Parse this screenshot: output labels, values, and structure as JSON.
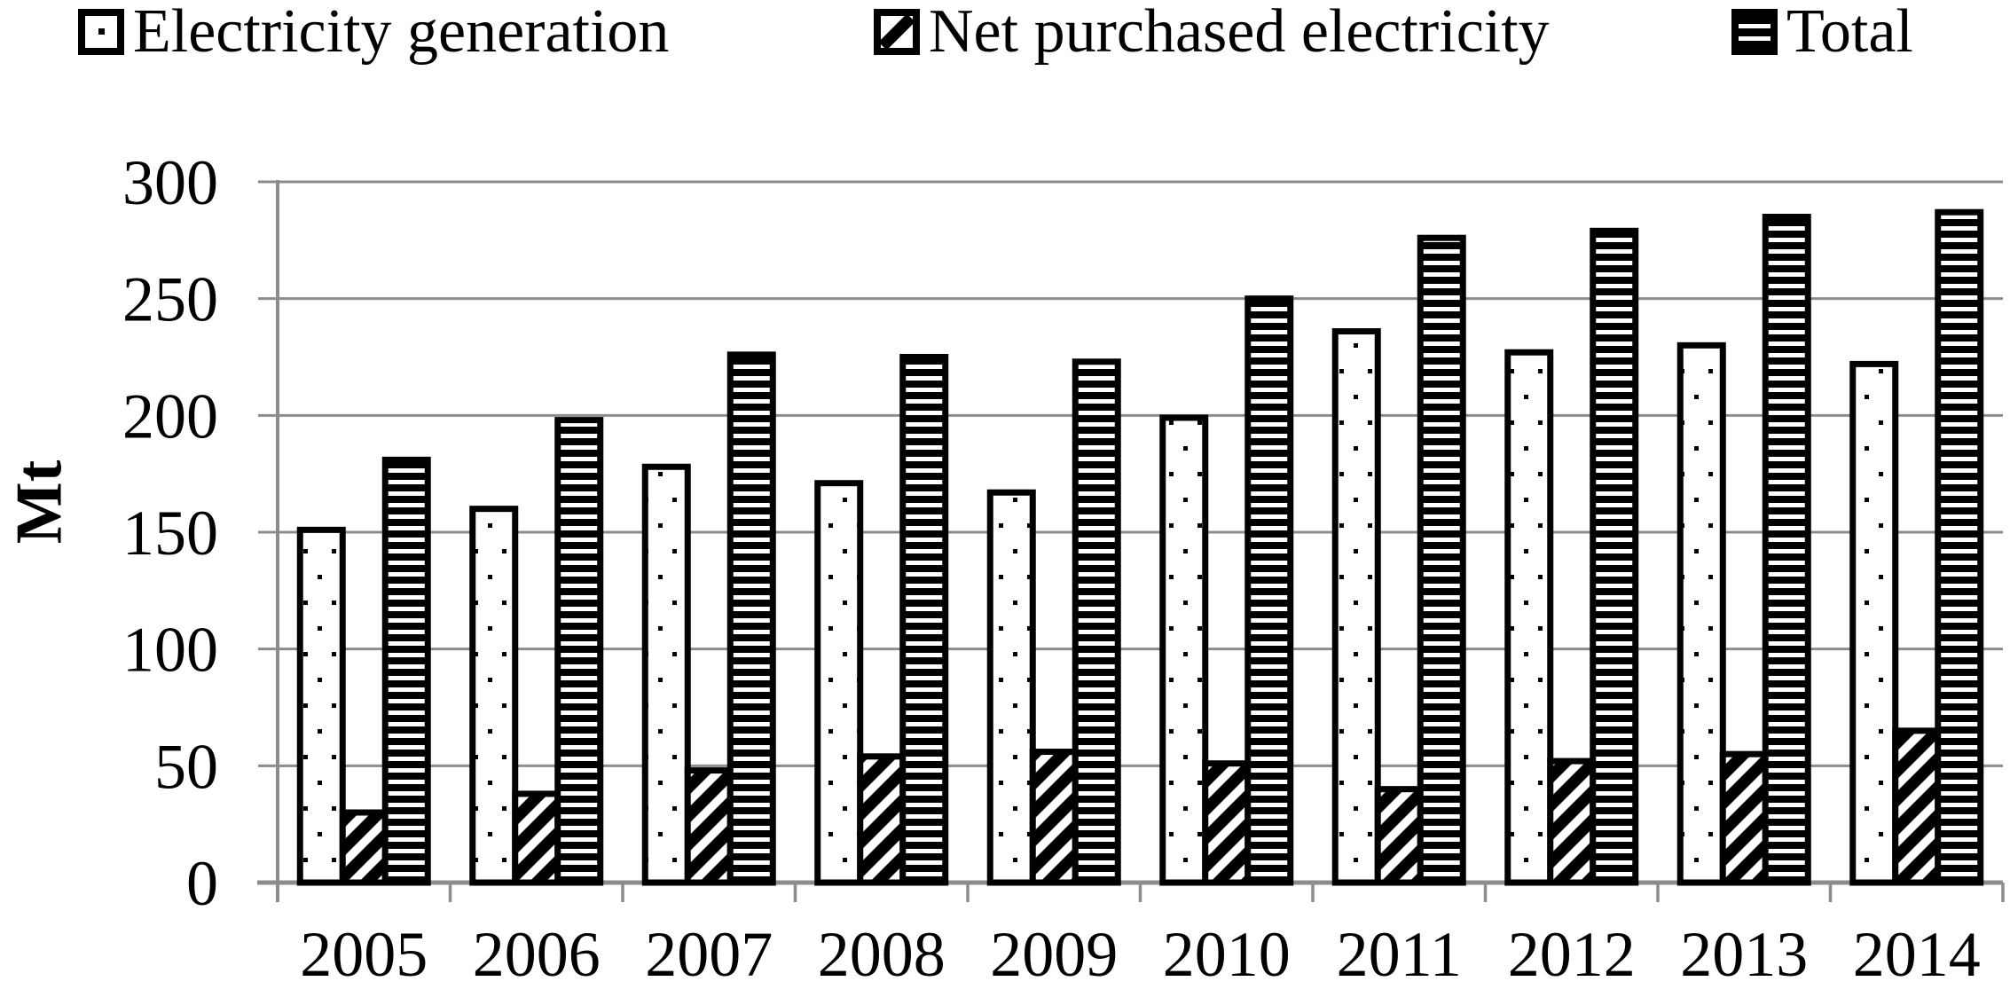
{
  "page": {
    "background": "#ffffff"
  },
  "chart_data": {
    "type": "bar",
    "title": "",
    "xlabel": "",
    "ylabel": "Mt",
    "ylim": [
      0,
      300
    ],
    "ytick_step": 50,
    "yticks": [
      0,
      50,
      100,
      150,
      200,
      250,
      300
    ],
    "grid": true,
    "legend_position": "top",
    "categories": [
      "2005",
      "2006",
      "2007",
      "2008",
      "2009",
      "2010",
      "2011",
      "2012",
      "2013",
      "2014"
    ],
    "series": [
      {
        "name": "Electricity generation",
        "pattern": "dots",
        "values": [
          151,
          160,
          178,
          171,
          167,
          199,
          236,
          227,
          230,
          222
        ]
      },
      {
        "name": "Net purchased electricity",
        "pattern": "diagonal-hatch",
        "values": [
          30,
          38,
          48,
          54,
          56,
          51,
          40,
          52,
          55,
          65
        ]
      },
      {
        "name": "Total",
        "pattern": "horizontal-stripes",
        "values": [
          181,
          198,
          226,
          225,
          223,
          250,
          276,
          279,
          285,
          287
        ]
      }
    ],
    "colors": {
      "bar_fill": "#ffffff",
      "bar_stroke": "#000000",
      "grid": "#8c8c8c",
      "text": "#000000"
    }
  }
}
